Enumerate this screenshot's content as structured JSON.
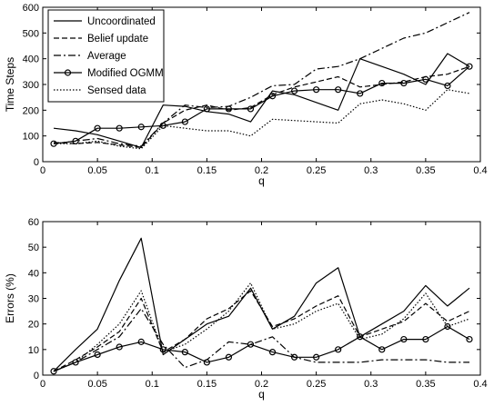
{
  "chart_data": [
    {
      "type": "line",
      "xlabel": "q",
      "ylabel": "Time Steps",
      "xlim": [
        0,
        0.4
      ],
      "ylim": [
        0,
        600
      ],
      "xticks": [
        0,
        0.05,
        0.1,
        0.15,
        0.2,
        0.25,
        0.3,
        0.35,
        0.4
      ],
      "xtick_labels": [
        "0",
        "0.05",
        "0.1",
        "0.15",
        "0.2",
        "0.25",
        "0.3",
        "0.35",
        "0.4"
      ],
      "yticks": [
        0,
        100,
        200,
        300,
        400,
        500,
        600
      ],
      "ytick_labels": [
        "0",
        "100",
        "200",
        "300",
        "400",
        "500",
        "600"
      ],
      "grid": false,
      "legend": "top-left",
      "x": [
        0.01,
        0.03,
        0.05,
        0.07,
        0.09,
        0.11,
        0.13,
        0.15,
        0.17,
        0.19,
        0.21,
        0.23,
        0.25,
        0.27,
        0.29,
        0.31,
        0.33,
        0.35,
        0.37,
        0.39
      ],
      "series": [
        {
          "name": "Uncoordinated",
          "style": "solid",
          "values": [
            130,
            120,
            105,
            80,
            55,
            220,
            215,
            195,
            185,
            155,
            275,
            260,
            230,
            200,
            400,
            370,
            340,
            300,
            420,
            370
          ]
        },
        {
          "name": "Belief update",
          "style": "dashed",
          "values": [
            75,
            70,
            75,
            65,
            55,
            150,
            200,
            220,
            200,
            210,
            260,
            290,
            310,
            330,
            290,
            300,
            310,
            330,
            340,
            370
          ]
        },
        {
          "name": "Average",
          "style": "dashdot",
          "values": [
            70,
            80,
            90,
            70,
            60,
            150,
            220,
            210,
            215,
            250,
            295,
            300,
            360,
            370,
            400,
            440,
            480,
            500,
            540,
            580
          ]
        },
        {
          "name": "Modified OGMM",
          "style": "solid-circle",
          "values": [
            70,
            80,
            130,
            130,
            135,
            140,
            155,
            205,
            205,
            205,
            255,
            275,
            280,
            280,
            265,
            305,
            305,
            320,
            295,
            370
          ]
        },
        {
          "name": "Sensed data",
          "style": "dotted",
          "values": [
            70,
            70,
            80,
            60,
            50,
            140,
            130,
            120,
            120,
            100,
            165,
            160,
            155,
            150,
            225,
            240,
            225,
            200,
            280,
            265
          ]
        }
      ]
    },
    {
      "type": "line",
      "xlabel": "q",
      "ylabel": "Errors (%)",
      "xlim": [
        0,
        0.4
      ],
      "ylim": [
        0,
        60
      ],
      "xticks": [
        0,
        0.05,
        0.1,
        0.15,
        0.2,
        0.25,
        0.3,
        0.35,
        0.4
      ],
      "xtick_labels": [
        "0",
        "0.05",
        "0.1",
        "0.15",
        "0.2",
        "0.25",
        "0.3",
        "0.35",
        "0.4"
      ],
      "yticks": [
        0,
        10,
        20,
        30,
        40,
        50,
        60
      ],
      "ytick_labels": [
        "0",
        "10",
        "20",
        "30",
        "40",
        "50",
        "60"
      ],
      "grid": false,
      "x": [
        0.01,
        0.03,
        0.05,
        0.07,
        0.09,
        0.11,
        0.13,
        0.15,
        0.17,
        0.19,
        0.21,
        0.23,
        0.25,
        0.27,
        0.29,
        0.31,
        0.33,
        0.35,
        0.37,
        0.39
      ],
      "series": [
        {
          "name": "Uncoordinated",
          "style": "solid",
          "values": [
            1.5,
            10,
            18,
            37,
            53.5,
            8,
            14,
            20,
            23,
            34,
            18,
            23,
            36,
            42,
            15,
            20,
            25,
            35,
            27,
            34
          ]
        },
        {
          "name": "Belief update",
          "style": "dashed",
          "values": [
            1.5,
            6,
            11,
            17,
            30,
            9,
            14,
            22,
            26,
            33,
            19,
            22,
            27,
            31,
            15,
            18,
            21,
            28,
            21,
            25
          ]
        },
        {
          "name": "Average",
          "style": "dashdot",
          "values": [
            1.5,
            5,
            10,
            15,
            26,
            12,
            3,
            6,
            13,
            12,
            15,
            7,
            5,
            5,
            5,
            6,
            6,
            6,
            5,
            5
          ]
        },
        {
          "name": "Modified OGMM",
          "style": "solid-circle",
          "values": [
            1.5,
            5,
            8,
            11,
            13,
            10,
            9,
            5,
            7,
            12,
            9,
            7,
            7,
            10,
            15,
            10,
            14,
            14,
            19,
            14
          ]
        },
        {
          "name": "Sensed data",
          "style": "dotted",
          "values": [
            1.5,
            5,
            12,
            20,
            33,
            9,
            12,
            18,
            25,
            36,
            18,
            20,
            25,
            28,
            14,
            16,
            22,
            32,
            19,
            22
          ]
        }
      ]
    }
  ]
}
